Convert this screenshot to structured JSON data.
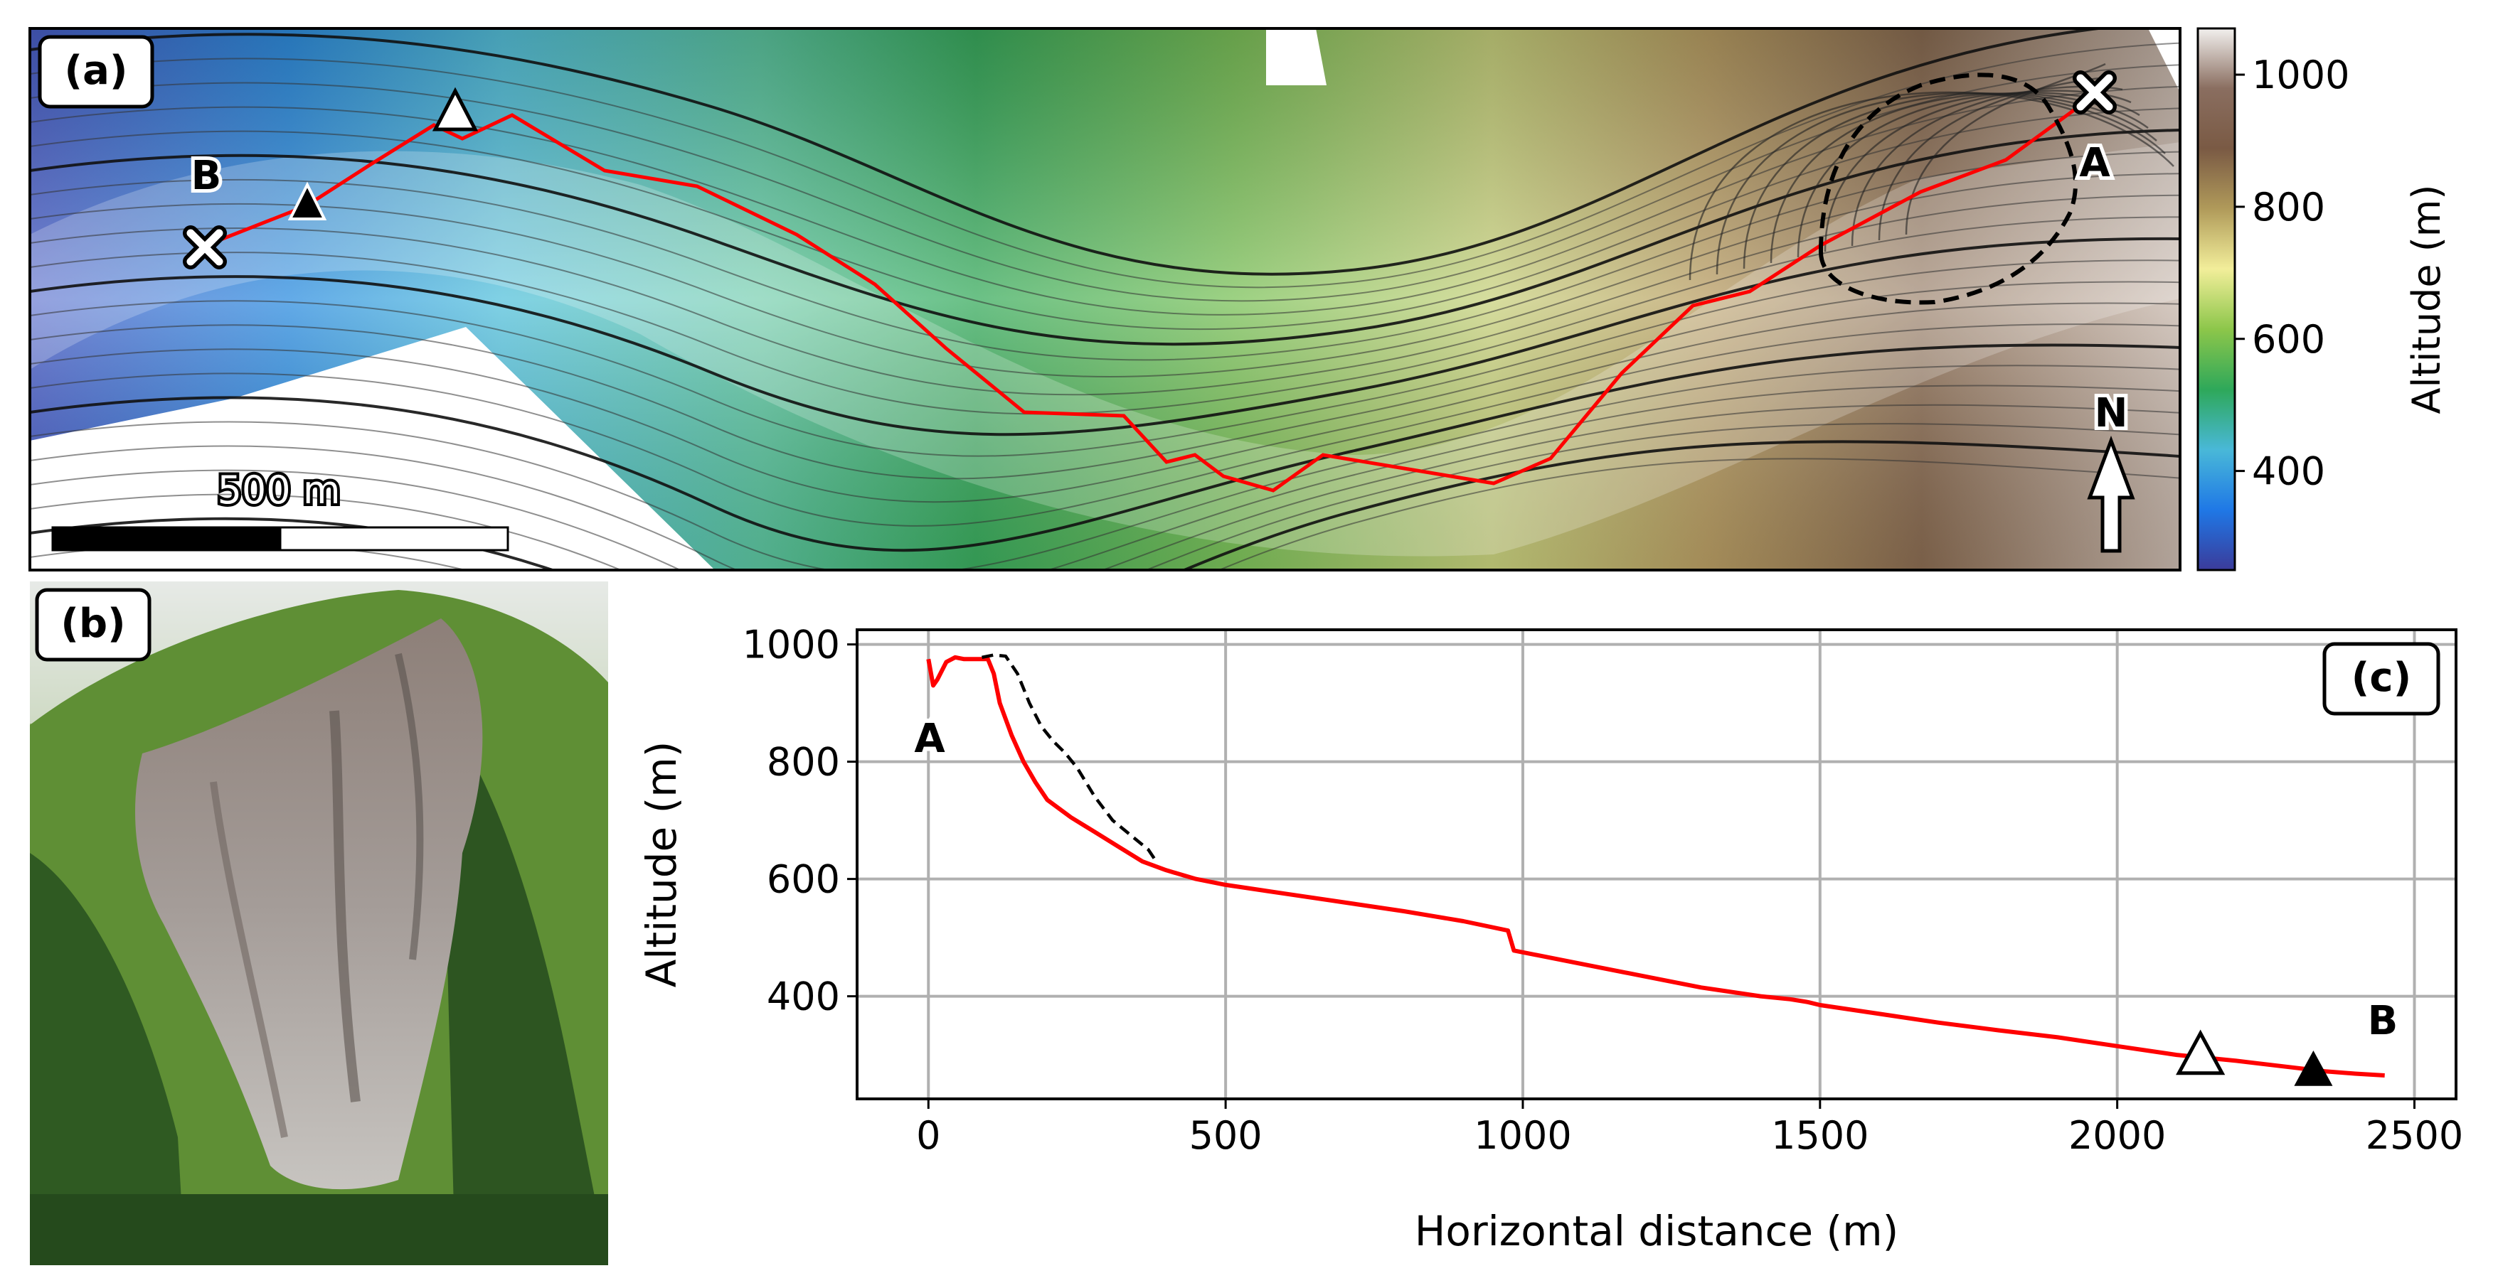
{
  "panel_a": {
    "label": "(a)",
    "point_a": "A",
    "point_b": "B",
    "north": "N",
    "scale_label": "500 m",
    "colorbar": {
      "label": "Altitude (m)",
      "ticks": [
        400,
        600,
        800,
        1000
      ],
      "range": [
        250,
        1070
      ],
      "colors": [
        "#3b3b9a",
        "#1f78e6",
        "#49b8d8",
        "#2ea85a",
        "#8cc64a",
        "#f2ee9a",
        "#b09a5a",
        "#7a5a44",
        "#8a6e60",
        "#f2f0ee"
      ]
    }
  },
  "panel_b": {
    "label": "(b)"
  },
  "panel_c": {
    "label": "(c)",
    "point_a": "A",
    "point_b": "B"
  },
  "chart_data": {
    "type": "line",
    "xlabel": "Horizontal distance (m)",
    "ylabel": "Altitude (m)",
    "xlim": [
      -120,
      2570
    ],
    "ylim": [
      225,
      1025
    ],
    "xticks": [
      0,
      500,
      1000,
      1500,
      2000,
      2500
    ],
    "yticks": [
      400,
      600,
      800,
      1000
    ],
    "grid": true,
    "series": [
      {
        "style": "solid",
        "color": "#ff0000",
        "x": [
          0,
          8,
          15,
          30,
          45,
          60,
          80,
          100,
          110,
          120,
          140,
          160,
          180,
          200,
          240,
          280,
          320,
          360,
          400,
          450,
          500,
          600,
          700,
          800,
          900,
          975,
          985,
          1000,
          1100,
          1200,
          1300,
          1400,
          1450,
          1480,
          1500,
          1600,
          1700,
          1800,
          1900,
          2000,
          2100,
          2200,
          2300,
          2350,
          2400,
          2450
        ],
        "y": [
          975,
          930,
          940,
          970,
          978,
          975,
          975,
          975,
          950,
          900,
          845,
          800,
          765,
          735,
          705,
          680,
          655,
          630,
          615,
          600,
          590,
          575,
          560,
          545,
          528,
          512,
          478,
          475,
          455,
          435,
          415,
          400,
          395,
          390,
          385,
          370,
          355,
          342,
          330,
          315,
          300,
          290,
          278,
          272,
          268,
          265
        ]
      },
      {
        "style": "dashed",
        "color": "#000000",
        "x": [
          90,
          110,
          130,
          150,
          170,
          190,
          210,
          230,
          250,
          280,
          310,
          340,
          370,
          380
        ],
        "y": [
          978,
          982,
          980,
          950,
          900,
          860,
          835,
          815,
          790,
          740,
          700,
          675,
          650,
          635
        ]
      }
    ],
    "markers": [
      {
        "x": 2140,
        "y": 298,
        "shape": "triangle",
        "fill": "white"
      },
      {
        "x": 2330,
        "y": 272,
        "shape": "triangle",
        "fill": "black"
      }
    ]
  }
}
